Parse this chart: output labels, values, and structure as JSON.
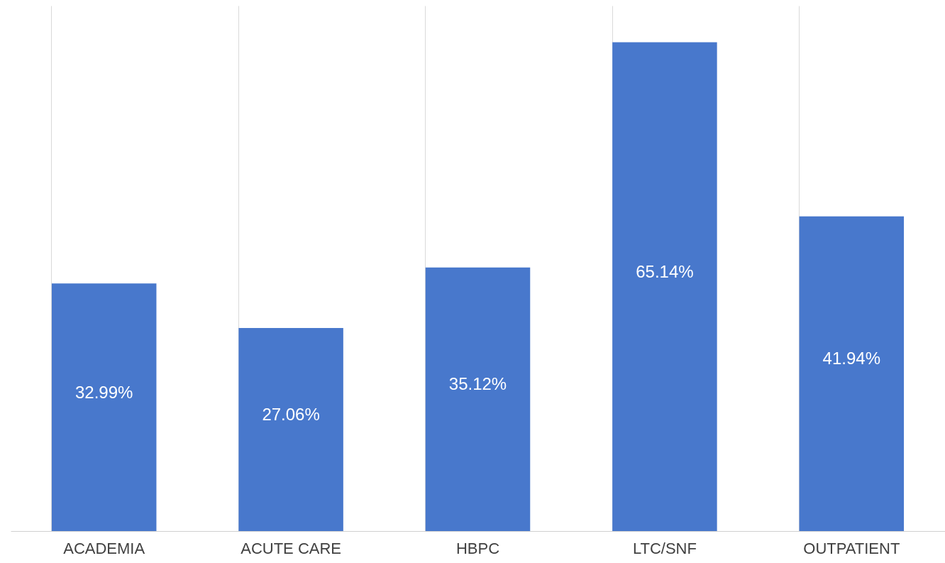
{
  "chart_data": {
    "type": "bar",
    "categories": [
      "ACADEMIA",
      "ACUTE CARE",
      "HBPC",
      "LTC/SNF",
      "OUTPATIENT"
    ],
    "values": [
      32.99,
      27.06,
      35.12,
      65.14,
      41.94
    ],
    "value_labels": [
      "32.99%",
      "27.06%",
      "35.12%",
      "65.14%",
      "41.94%"
    ],
    "color": "#4878cc",
    "ylim": [
      0,
      70
    ],
    "grid": "x",
    "tick_labels": "x"
  }
}
